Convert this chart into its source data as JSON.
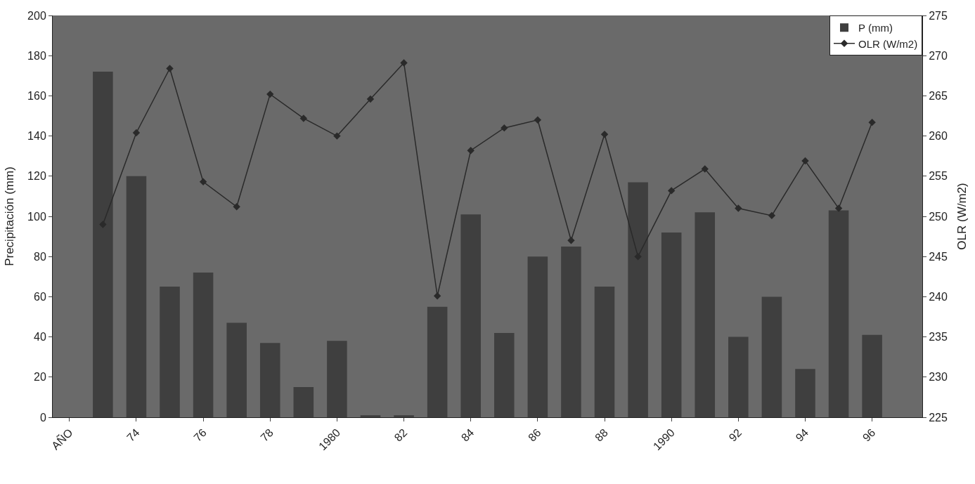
{
  "chart_data": {
    "type": "bar",
    "ylabel": "Precipitación (mm)",
    "y2label": "OLR (W/m2)",
    "categories": [
      "AÑO",
      null,
      "74",
      null,
      "76",
      null,
      "78",
      null,
      "1980",
      null,
      "82",
      null,
      "84",
      null,
      "86",
      null,
      "88",
      null,
      "1990",
      null,
      "92",
      null,
      "94",
      null,
      "96",
      null
    ],
    "series": [
      {
        "name": "P (mm)",
        "color": "#3f3f3f",
        "values": [
          null,
          172,
          120,
          65,
          72,
          47,
          37,
          15,
          38,
          1,
          1,
          55,
          101,
          42,
          80,
          85,
          65,
          117,
          92,
          102,
          40,
          60,
          24,
          103,
          41,
          null
        ]
      },
      {
        "name": "OLR (W/m2)",
        "type": "line",
        "axis": "y2",
        "color": "#2a2a2a",
        "marker": "diamond",
        "values": [
          null,
          249,
          260.4,
          268.4,
          254.3,
          251.2,
          265.2,
          262.2,
          260,
          264.6,
          269.1,
          240.1,
          258.2,
          261,
          262,
          247,
          260.2,
          245,
          253.2,
          255.9,
          251,
          250.1,
          256.9,
          251,
          261.7,
          null
        ]
      }
    ],
    "ylim": [
      0,
      200
    ],
    "yticks": [
      0,
      20,
      40,
      60,
      80,
      100,
      120,
      140,
      160,
      180,
      200
    ],
    "y2lim": [
      225,
      275
    ],
    "y2ticks": [
      225,
      230,
      235,
      240,
      245,
      250,
      255,
      260,
      265,
      270,
      275
    ],
    "grid": false,
    "legend": "top right"
  }
}
